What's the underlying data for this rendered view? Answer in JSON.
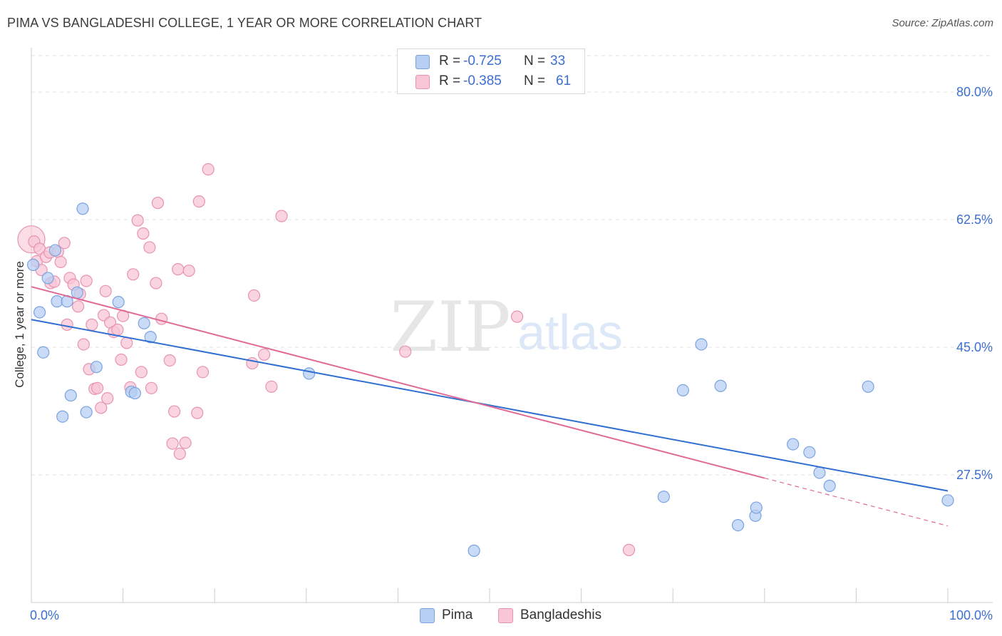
{
  "title": "PIMA VS BANGLADESHI COLLEGE, 1 YEAR OR MORE CORRELATION CHART",
  "source": "Source: ZipAtlas.com",
  "watermark": {
    "zip": "ZIP",
    "atlas": "atlas"
  },
  "legend": {
    "rows": [
      {
        "r_label": "R =",
        "r_value": "-0.725",
        "n_label": "N =",
        "n_value": "33"
      },
      {
        "r_label": "R =",
        "r_value": "-0.385",
        "n_label": "N =",
        "n_value": "61"
      }
    ]
  },
  "colors": {
    "pima_fill": "#b7cff3",
    "pima_stroke": "#7aa3e0",
    "pima_line": "#2f6fd0",
    "bang_fill": "#f8c6d6",
    "bang_stroke": "#e793b0",
    "bang_line": "#e06a96",
    "grid": "#e2e2e2",
    "axis": "#cccccc",
    "tick_text": "#3b6fd0"
  },
  "chart_data": {
    "type": "scatter",
    "title": "PIMA VS BANGLADESHI COLLEGE, 1 YEAR OR MORE CORRELATION CHART",
    "xlabel": "",
    "ylabel": "College, 1 year or more",
    "xlim": [
      0,
      100
    ],
    "ylim": [
      10,
      85
    ],
    "x_tick_labels": [
      "0.0%",
      "100.0%"
    ],
    "y_ticks": [
      27.5,
      45.0,
      62.5,
      80.0
    ],
    "y_tick_labels": [
      "27.5%",
      "45.0%",
      "62.5%",
      "80.0%"
    ],
    "grid": true,
    "series": [
      {
        "name": "Pima",
        "r": -0.725,
        "n": 33,
        "trend": {
          "x0": 0,
          "y0": 48.8,
          "x1": 100,
          "y1": 25.3,
          "dashed_from": null
        },
        "points": [
          [
            0.2,
            56.3
          ],
          [
            0.9,
            49.8
          ],
          [
            1.3,
            44.3
          ],
          [
            1.8,
            54.5
          ],
          [
            2.6,
            58.3
          ],
          [
            2.8,
            51.3
          ],
          [
            3.4,
            35.5
          ],
          [
            3.9,
            51.3
          ],
          [
            4.3,
            38.4
          ],
          [
            5.0,
            52.5
          ],
          [
            5.6,
            64.0
          ],
          [
            6.0,
            36.1
          ],
          [
            7.1,
            42.3
          ],
          [
            9.5,
            51.2
          ],
          [
            10.9,
            38.9
          ],
          [
            11.3,
            38.7
          ],
          [
            12.3,
            48.3
          ],
          [
            13.0,
            46.4
          ],
          [
            30.3,
            41.4
          ],
          [
            48.3,
            17.1
          ],
          [
            69.0,
            24.5
          ],
          [
            71.1,
            39.1
          ],
          [
            73.1,
            45.4
          ],
          [
            75.2,
            39.7
          ],
          [
            77.1,
            20.6
          ],
          [
            79.0,
            21.9
          ],
          [
            79.1,
            23.0
          ],
          [
            83.1,
            31.7
          ],
          [
            84.9,
            30.6
          ],
          [
            86.0,
            27.8
          ],
          [
            87.1,
            26.0
          ],
          [
            91.3,
            39.6
          ],
          [
            100.0,
            24.0
          ]
        ]
      },
      {
        "name": "Bangladeshis",
        "r": -0.385,
        "n": 61,
        "trend": {
          "x0": 0,
          "y0": 53.3,
          "x1": 100,
          "y1": 20.5,
          "dashed_from": 80
        },
        "points": [
          [
            0.3,
            59.5
          ],
          [
            0.6,
            56.8
          ],
          [
            0.9,
            58.5
          ],
          [
            1.1,
            55.6
          ],
          [
            1.6,
            57.4
          ],
          [
            2.0,
            58.0
          ],
          [
            2.1,
            53.8
          ],
          [
            2.5,
            54.0
          ],
          [
            2.9,
            58.1
          ],
          [
            3.2,
            56.7
          ],
          [
            3.6,
            59.3
          ],
          [
            3.9,
            48.1
          ],
          [
            4.2,
            54.5
          ],
          [
            4.6,
            53.6
          ],
          [
            5.1,
            50.6
          ],
          [
            5.3,
            52.3
          ],
          [
            5.7,
            45.4
          ],
          [
            6.0,
            54.1
          ],
          [
            6.3,
            42.0
          ],
          [
            6.6,
            48.1
          ],
          [
            6.9,
            39.3
          ],
          [
            7.2,
            39.4
          ],
          [
            7.6,
            36.7
          ],
          [
            7.9,
            49.4
          ],
          [
            8.1,
            52.7
          ],
          [
            8.3,
            38.0
          ],
          [
            8.6,
            48.4
          ],
          [
            9.0,
            47.1
          ],
          [
            9.4,
            47.4
          ],
          [
            9.8,
            43.3
          ],
          [
            10.0,
            49.3
          ],
          [
            10.4,
            45.6
          ],
          [
            10.8,
            39.5
          ],
          [
            11.1,
            55.0
          ],
          [
            11.6,
            62.4
          ],
          [
            12.0,
            41.6
          ],
          [
            12.2,
            60.6
          ],
          [
            12.9,
            58.7
          ],
          [
            13.1,
            39.4
          ],
          [
            13.6,
            53.8
          ],
          [
            13.8,
            64.8
          ],
          [
            14.2,
            48.9
          ],
          [
            15.1,
            43.2
          ],
          [
            15.4,
            31.8
          ],
          [
            15.6,
            36.2
          ],
          [
            16.0,
            55.7
          ],
          [
            16.2,
            30.4
          ],
          [
            16.8,
            31.9
          ],
          [
            17.2,
            55.5
          ],
          [
            18.1,
            36.0
          ],
          [
            18.3,
            65.0
          ],
          [
            18.7,
            41.6
          ],
          [
            19.3,
            69.4
          ],
          [
            24.1,
            42.8
          ],
          [
            24.3,
            52.1
          ],
          [
            25.4,
            44.0
          ],
          [
            26.2,
            39.6
          ],
          [
            27.3,
            63.0
          ],
          [
            40.8,
            44.4
          ],
          [
            53.0,
            49.2
          ],
          [
            65.2,
            17.2
          ]
        ]
      }
    ]
  }
}
